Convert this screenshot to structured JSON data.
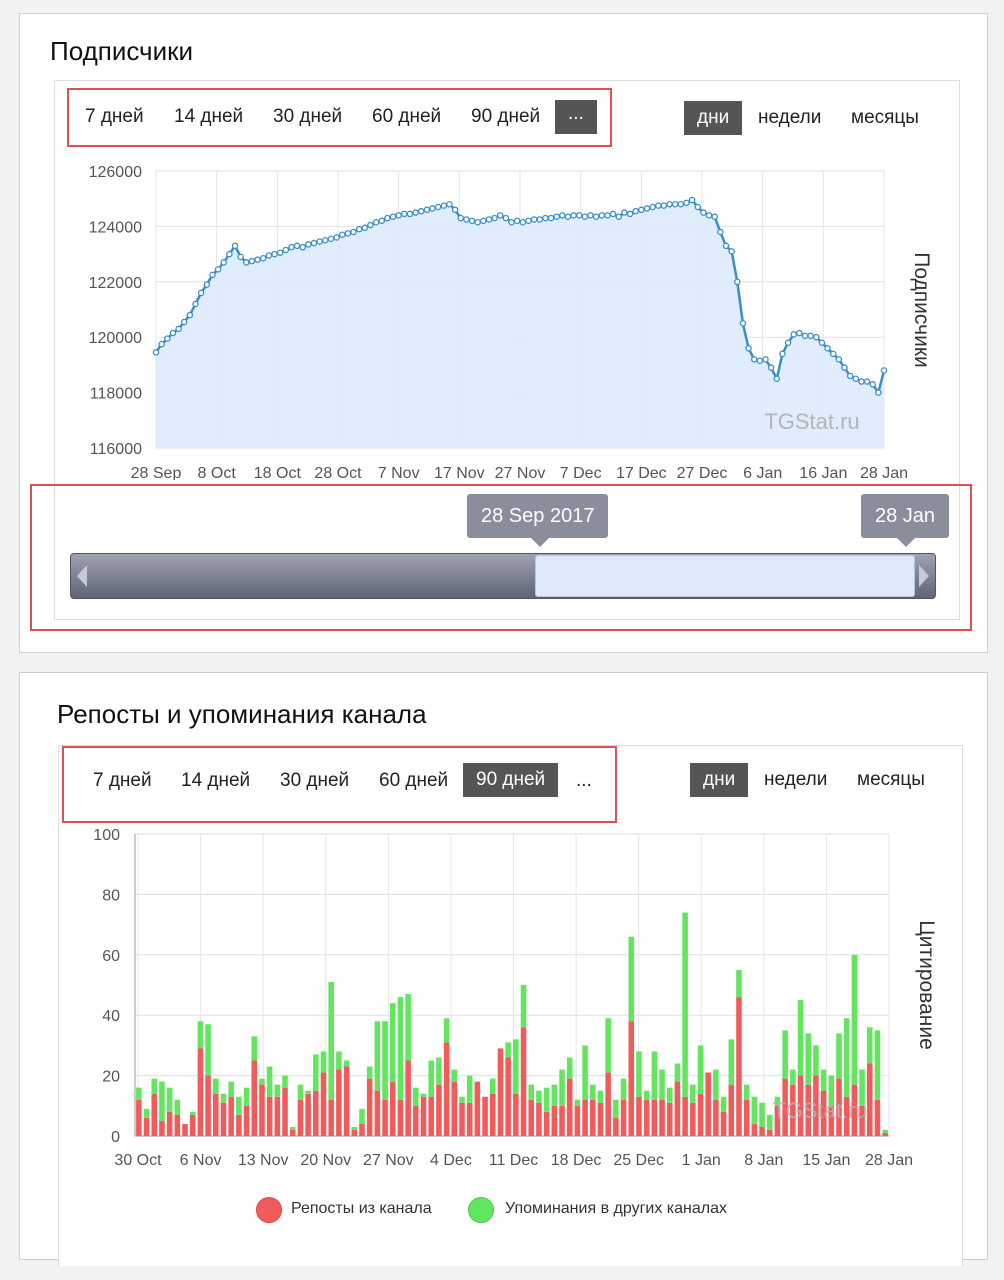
{
  "panel1": {
    "title": "Подписчики",
    "ranges": [
      "7 дней",
      "14 дней",
      "30 дней",
      "60 дней",
      "90 дней",
      "..."
    ],
    "active_range": 5,
    "granularity": [
      "дни",
      "недели",
      "месяцы"
    ],
    "active_granularity": 0,
    "watermark": "TGStat.ru",
    "navigator": {
      "left_label": "28 Sep 2017",
      "right_label": "28 Jan"
    }
  },
  "panel2": {
    "title": "Репосты и упоминания канала",
    "ranges": [
      "7 дней",
      "14 дней",
      "30 дней",
      "60 дней",
      "90 дней",
      "..."
    ],
    "active_range": 4,
    "granularity": [
      "дни",
      "недели",
      "месяцы"
    ],
    "active_granularity": 0,
    "watermark": "TGStat.ru"
  },
  "colors": {
    "line": "#3a8fc8",
    "area": "#deeafc",
    "reposts": "#f25b5b",
    "mentions": "#62e65e",
    "active_button": "#555555",
    "highlight_border": "#e15050"
  },
  "chart_data": [
    {
      "type": "area",
      "title": "Подписчики",
      "ylabel": "Подписчики",
      "xlabel": "",
      "ylim": [
        116000,
        126000
      ],
      "yticks": [
        116000,
        118000,
        120000,
        122000,
        124000,
        126000
      ],
      "xticks": [
        "28 Sep",
        "8 Oct",
        "18 Oct",
        "28 Oct",
        "7 Nov",
        "17 Nov",
        "27 Nov",
        "7 Dec",
        "17 Dec",
        "27 Dec",
        "6 Jan",
        "16 Jan",
        "28 Jan"
      ],
      "x_start": "2017-09-28",
      "series": [
        {
          "values": [
            119450,
            119750,
            119950,
            120150,
            120300,
            120550,
            120800,
            121200,
            121600,
            121900,
            122250,
            122450,
            122700,
            123000,
            123300,
            122900,
            122700,
            122750,
            122800,
            122850,
            122950,
            123000,
            123050,
            123150,
            123250,
            123300,
            123250,
            123350,
            123400,
            123450,
            123500,
            123550,
            123600,
            123700,
            123750,
            123800,
            123900,
            123950,
            124050,
            124150,
            124200,
            124300,
            124350,
            124400,
            124450,
            124450,
            124500,
            124550,
            124600,
            124650,
            124700,
            124750,
            124800,
            124600,
            124300,
            124250,
            124200,
            124150,
            124200,
            124250,
            124300,
            124400,
            124300,
            124150,
            124200,
            124150,
            124200,
            124250,
            124250,
            124300,
            124300,
            124350,
            124400,
            124350,
            124400,
            124400,
            124350,
            124400,
            124350,
            124400,
            124400,
            124450,
            124350,
            124500,
            124450,
            124550,
            124600,
            124650,
            124700,
            124750,
            124750,
            124800,
            124800,
            124800,
            124850,
            124950,
            124700,
            124500,
            124400,
            124350,
            123800,
            123300,
            123100,
            122000,
            120500,
            119600,
            119200,
            119150,
            119200,
            118900,
            118500,
            119400,
            119800,
            120100,
            120150,
            120050,
            120050,
            120000,
            119800,
            119600,
            119400,
            119200,
            118900,
            118600,
            118500,
            118400,
            118400,
            118300,
            118000,
            118800
          ]
        }
      ]
    },
    {
      "type": "bar",
      "title": "Репосты и упоминания канала",
      "ylabel": "Цитирование",
      "xlabel": "",
      "ylim": [
        0,
        100
      ],
      "yticks": [
        0,
        20,
        40,
        60,
        80,
        100
      ],
      "xticks": [
        "30 Oct",
        "6 Nov",
        "13 Nov",
        "20 Nov",
        "27 Nov",
        "4 Dec",
        "11 Dec",
        "18 Dec",
        "25 Dec",
        "1 Jan",
        "8 Jan",
        "15 Jan",
        "28 Jan"
      ],
      "stacked": true,
      "legend_position": "bottom-center",
      "series": [
        {
          "name": "Репосты из канала",
          "values": [
            12,
            6,
            14,
            5,
            8,
            7,
            4,
            7,
            29,
            20,
            14,
            11,
            13,
            7,
            10,
            25,
            17,
            13,
            13,
            16,
            2,
            12,
            14,
            15,
            21,
            12,
            22,
            23,
            2,
            4,
            19,
            15,
            12,
            18,
            12,
            25,
            10,
            13,
            13,
            17,
            31,
            18,
            11,
            11,
            18,
            13,
            14,
            29,
            26,
            14,
            36,
            12,
            11,
            8,
            10,
            10,
            19,
            10,
            12,
            12,
            11,
            21,
            6,
            12,
            38,
            13,
            12,
            12,
            12,
            11,
            18,
            13,
            11,
            14,
            21,
            12,
            8,
            17,
            46,
            12,
            4,
            3,
            2,
            10,
            19,
            17,
            20,
            17,
            20,
            15,
            10,
            19,
            13,
            17,
            10,
            24,
            12,
            1
          ]
        },
        {
          "name": "Упоминания в других каналах",
          "values": [
            4,
            3,
            5,
            13,
            8,
            5,
            0,
            1,
            9,
            17,
            5,
            3,
            5,
            6,
            6,
            8,
            2,
            10,
            4,
            4,
            1,
            5,
            1,
            12,
            7,
            39,
            6,
            2,
            1,
            5,
            4,
            23,
            26,
            26,
            34,
            22,
            6,
            1,
            12,
            9,
            8,
            4,
            2,
            9,
            0,
            0,
            5,
            0,
            5,
            18,
            14,
            5,
            4,
            8,
            7,
            12,
            7,
            2,
            18,
            5,
            4,
            18,
            6,
            7,
            28,
            15,
            3,
            16,
            10,
            5,
            6,
            61,
            6,
            16,
            0,
            10,
            5,
            15,
            9,
            5,
            9,
            8,
            5,
            3,
            16,
            5,
            25,
            17,
            10,
            7,
            10,
            15,
            26,
            43,
            12,
            12,
            23,
            1
          ]
        }
      ]
    }
  ]
}
